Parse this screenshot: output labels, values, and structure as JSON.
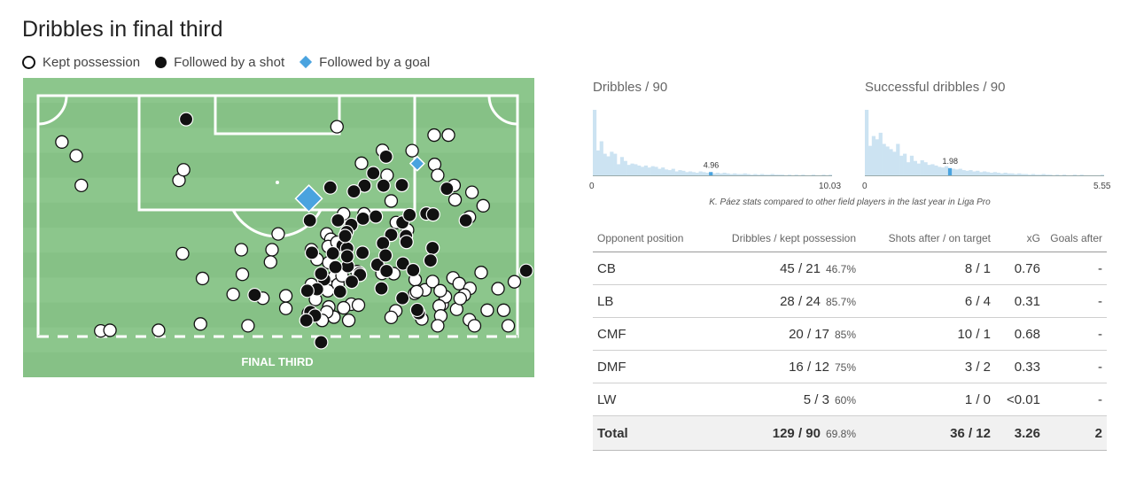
{
  "title": "Dribbles in final third",
  "legend": [
    {
      "label": "Kept possession",
      "icon": "open-circle"
    },
    {
      "label": "Followed by a shot",
      "icon": "filled-circle"
    },
    {
      "label": "Followed by a goal",
      "icon": "diamond"
    }
  ],
  "colors": {
    "pitch": "#8cc68c",
    "pitch_alt": "#86c186",
    "line": "#ffffff",
    "goal": "#4aa3df",
    "hist_bar": "#cce3f2",
    "hist_mark": "#4aa3df"
  },
  "pitch": {
    "zone_label": "FINAL THIRD"
  },
  "chart_data": [
    {
      "type": "scatter",
      "title": "Dribbles in final third",
      "coordinate_units": "pitch plot units (x 0-100 left to right, y 0-100 top to bottom)",
      "series": [
        {
          "name": "Kept possession",
          "points": [
            [
              7.6,
              21.4
            ],
            [
              10.4,
              26.0
            ],
            [
              11.4,
              35.9
            ],
            [
              30.5,
              34.2
            ],
            [
              31.4,
              30.7
            ],
            [
              61.4,
              16.3
            ],
            [
              66.2,
              28.5
            ],
            [
              70.3,
              24.2
            ],
            [
              72.0,
              41.1
            ],
            [
              71.2,
              32.5
            ],
            [
              76.1,
              24.3
            ],
            [
              80.4,
              19.1
            ],
            [
              83.2,
              19.1
            ],
            [
              80.5,
              28.9
            ],
            [
              81.1,
              32.5
            ],
            [
              84.3,
              35.9
            ],
            [
              87.8,
              38.2
            ],
            [
              84.5,
              40.7
            ],
            [
              90.0,
              42.7
            ],
            [
              87.3,
              46.5
            ],
            [
              62.7,
              45.4
            ],
            [
              66.7,
              45.4
            ],
            [
              73.0,
              48.3
            ],
            [
              75.2,
              50.8
            ],
            [
              59.4,
              52.1
            ],
            [
              60.2,
              53.9
            ],
            [
              59.7,
              56.3
            ],
            [
              61.4,
              54.9
            ],
            [
              49.9,
              52.1
            ],
            [
              48.7,
              57.4
            ],
            [
              56.4,
              57.4
            ],
            [
              48.4,
              61.5
            ],
            [
              57.5,
              60.6
            ],
            [
              59.8,
              61.7
            ],
            [
              61.0,
              66.1
            ],
            [
              59.5,
              69.5
            ],
            [
              56.4,
              69.0
            ],
            [
              61.6,
              69.0
            ],
            [
              62.4,
              66.1
            ],
            [
              65.3,
              64.7
            ],
            [
              70.2,
              65.3
            ],
            [
              72.5,
              65.4
            ],
            [
              76.7,
              67.4
            ],
            [
              78.6,
              70.8
            ],
            [
              80.1,
              68.0
            ],
            [
              84.1,
              66.8
            ],
            [
              85.3,
              68.7
            ],
            [
              87.4,
              70.3
            ],
            [
              86.3,
              72.5
            ],
            [
              82.0,
              75.6
            ],
            [
              82.6,
              73.1
            ],
            [
              81.4,
              76.2
            ],
            [
              84.8,
              77.3
            ],
            [
              81.7,
              79.5
            ],
            [
              89.6,
              65.0
            ],
            [
              90.8,
              77.6
            ],
            [
              87.3,
              80.8
            ],
            [
              88.3,
              82.8
            ],
            [
              94.0,
              77.6
            ],
            [
              94.9,
              82.8
            ],
            [
              92.9,
              70.4
            ],
            [
              96.1,
              68.1
            ],
            [
              31.2,
              58.7
            ],
            [
              42.7,
              57.4
            ],
            [
              42.9,
              65.6
            ],
            [
              41.1,
              72.3
            ],
            [
              46.9,
              73.6
            ],
            [
              51.4,
              72.8
            ],
            [
              59.6,
              71.1
            ],
            [
              64.2,
              75.6
            ],
            [
              65.6,
              75.9
            ],
            [
              72.9,
              77.8
            ],
            [
              76.6,
              72.0
            ],
            [
              77.0,
              71.4
            ],
            [
              81.6,
              71.1
            ],
            [
              85.5,
              73.7
            ],
            [
              26.5,
              84.3
            ],
            [
              34.7,
              82.2
            ],
            [
              35.1,
              67.0
            ],
            [
              15.2,
              84.5
            ],
            [
              17.0,
              84.3
            ],
            [
              44.0,
              82.8
            ],
            [
              60.8,
              79.9
            ],
            [
              59.8,
              76.5
            ],
            [
              62.7,
              76.8
            ],
            [
              59.4,
              78.2
            ],
            [
              55.8,
              78.7
            ],
            [
              81.1,
              82.8
            ],
            [
              72.0,
              80.0
            ],
            [
              78.0,
              80.5
            ],
            [
              58.5,
              81.0
            ],
            [
              51.4,
              77.0
            ],
            [
              57.2,
              74.0
            ],
            [
              63.7,
              81.0
            ]
          ]
        },
        {
          "name": "Followed by a shot",
          "points": [
            [
              31.9,
              13.8
            ],
            [
              71.0,
              26.3
            ],
            [
              68.5,
              31.8
            ],
            [
              74.1,
              35.8
            ],
            [
              60.1,
              36.6
            ],
            [
              66.8,
              36.0
            ],
            [
              64.7,
              37.9
            ],
            [
              70.5,
              36.0
            ],
            [
              82.9,
              37.0
            ],
            [
              56.1,
              47.6
            ],
            [
              61.6,
              47.6
            ],
            [
              64.2,
              49.1
            ],
            [
              74.2,
              48.3
            ],
            [
              75.6,
              45.8
            ],
            [
              78.9,
              45.3
            ],
            [
              80.2,
              45.6
            ],
            [
              86.6,
              47.6
            ],
            [
              63.3,
              51.5
            ],
            [
              72.0,
              52.4
            ],
            [
              74.9,
              52.8
            ],
            [
              70.4,
              55.2
            ],
            [
              75.0,
              54.8
            ],
            [
              80.1,
              56.8
            ],
            [
              62.5,
              56.0
            ],
            [
              63.4,
              57.0
            ],
            [
              58.9,
              67.3
            ],
            [
              63.5,
              62.9
            ],
            [
              65.8,
              65.2
            ],
            [
              69.3,
              62.4
            ],
            [
              74.3,
              62.0
            ],
            [
              76.3,
              64.2
            ],
            [
              58.3,
              65.4
            ],
            [
              61.1,
              63.2
            ],
            [
              57.5,
              70.6
            ],
            [
              55.6,
              71.1
            ],
            [
              70.1,
              70.3
            ],
            [
              74.2,
              73.6
            ],
            [
              56.2,
              78.2
            ],
            [
              45.3,
              72.5
            ],
            [
              98.4,
              64.4
            ],
            [
              77.4,
              78.6
            ],
            [
              65.9,
              65.8
            ],
            [
              71.1,
              64.5
            ],
            [
              62.0,
              71.4
            ],
            [
              66.4,
              58.4
            ],
            [
              70.9,
              59.3
            ],
            [
              56.5,
              58.4
            ],
            [
              60.6,
              58.6
            ],
            [
              64.3,
              68.1
            ],
            [
              79.7,
              61.0
            ],
            [
              57.1,
              79.4
            ],
            [
              66.5,
              47.0
            ],
            [
              69.0,
              46.3
            ],
            [
              55.4,
              81.0
            ],
            [
              63.4,
              59.6
            ],
            [
              58.3,
              88.3
            ],
            [
              77.1,
              77.5
            ],
            [
              63.0,
              52.8
            ]
          ]
        },
        {
          "name": "Followed by a goal",
          "points": [
            [
              77.1,
              28.6
            ],
            [
              55.9,
              40.3
            ]
          ]
        }
      ]
    },
    {
      "type": "bar",
      "title": "Dribbles / 90",
      "xlim": [
        0,
        10.03
      ],
      "highlight_value": "4.96",
      "values": [
        1.0,
        0.38,
        0.52,
        0.33,
        0.29,
        0.36,
        0.33,
        0.17,
        0.28,
        0.22,
        0.16,
        0.18,
        0.17,
        0.15,
        0.13,
        0.15,
        0.12,
        0.14,
        0.13,
        0.1,
        0.12,
        0.09,
        0.08,
        0.1,
        0.06,
        0.08,
        0.07,
        0.05,
        0.06,
        0.05,
        0.04,
        0.06,
        0.05,
        0.04,
        0.05,
        0.03,
        0.04,
        0.03,
        0.04,
        0.03,
        0.02,
        0.03,
        0.02,
        0.02,
        0.03,
        0.02,
        0.01,
        0.02,
        0.01,
        0.02,
        0.01,
        0.01,
        0.02,
        0.01,
        0.01,
        0.01,
        0.0,
        0.01,
        0.0,
        0.01,
        0.0,
        0.01,
        0.0,
        0.0,
        0.01,
        0.0,
        0.0,
        0.01,
        0.0,
        0.01
      ]
    },
    {
      "type": "bar",
      "title": "Successful dribbles / 90",
      "xlim": [
        0,
        5.55
      ],
      "highlight_value": "1.98",
      "values": [
        1.0,
        0.45,
        0.6,
        0.55,
        0.65,
        0.48,
        0.44,
        0.4,
        0.36,
        0.48,
        0.3,
        0.33,
        0.2,
        0.3,
        0.22,
        0.18,
        0.23,
        0.2,
        0.16,
        0.17,
        0.15,
        0.13,
        0.12,
        0.14,
        0.11,
        0.1,
        0.09,
        0.1,
        0.08,
        0.07,
        0.08,
        0.06,
        0.07,
        0.05,
        0.06,
        0.05,
        0.04,
        0.05,
        0.04,
        0.03,
        0.04,
        0.03,
        0.03,
        0.02,
        0.03,
        0.02,
        0.02,
        0.01,
        0.02,
        0.01,
        0.01,
        0.02,
        0.01,
        0.01,
        0.0,
        0.01,
        0.0,
        0.01,
        0.0,
        0.0,
        0.01,
        0.0,
        0.01,
        0.0,
        0.0,
        0.0,
        0.0,
        0.0,
        0.01
      ]
    },
    {
      "type": "table",
      "caption": "K. Páez stats compared to other field players in the last year in Liga Pro",
      "headers": [
        "Opponent position",
        "Dribbles / kept possession",
        "Shots after / on target",
        "xG",
        "Goals after"
      ],
      "rows": [
        {
          "pos": "CB",
          "dribbles": "45 / 21",
          "pct": "46.7%",
          "shots": "8 / 1",
          "xg": "0.76",
          "goals": "-"
        },
        {
          "pos": "LB",
          "dribbles": "28 / 24",
          "pct": "85.7%",
          "shots": "6 / 4",
          "xg": "0.31",
          "goals": "-"
        },
        {
          "pos": "CMF",
          "dribbles": "20 / 17",
          "pct": "85%",
          "shots": "10 / 1",
          "xg": "0.68",
          "goals": "-"
        },
        {
          "pos": "DMF",
          "dribbles": "16 / 12",
          "pct": "75%",
          "shots": "3 / 2",
          "xg": "0.33",
          "goals": "-"
        },
        {
          "pos": "LW",
          "dribbles": "5 / 3",
          "pct": "60%",
          "shots": "1 / 0",
          "xg": "<0.01",
          "goals": "-"
        }
      ],
      "total": {
        "pos": "Total",
        "dribbles": "129 / 90",
        "pct": "69.8%",
        "shots": "36 / 12",
        "xg": "3.26",
        "goals": "2"
      }
    }
  ]
}
